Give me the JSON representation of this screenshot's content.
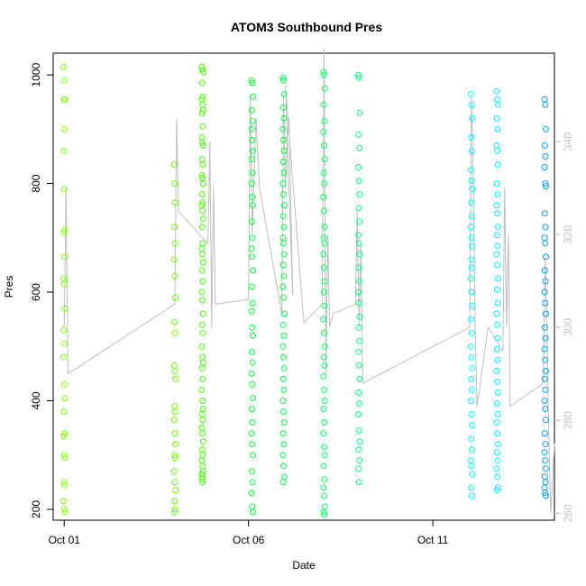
{
  "chart_data": {
    "type": "scatter",
    "title": "ATOM3 Southbound Pres",
    "xlabel": "Date",
    "ylabel": "Pres",
    "x_ticks": [
      "Oct 01",
      "Oct 06",
      "Oct 11"
    ],
    "y_ticks": [
      "200",
      "400",
      "600",
      "800",
      "1000"
    ],
    "y_right_ticks": [
      "260",
      "280",
      "300",
      "320",
      "340"
    ],
    "xlim_days": [
      30.7,
      44.3
    ],
    "ylim": [
      180,
      1040
    ],
    "y_right_lim": [
      258.5,
      359
    ],
    "grid": false,
    "legend": "none",
    "marker": "open-circle",
    "color_scale": [
      "#80ff00",
      "#00ff00",
      "#00ff80",
      "#00ffff",
      "#0080ff"
    ],
    "line_color": "#bebebe",
    "line_series": {
      "description_unit": "right-axis",
      "points": [
        [
          31.0,
          300
        ],
        [
          31.05,
          330
        ],
        [
          31.1,
          290
        ],
        [
          34.0,
          305
        ],
        [
          34.05,
          345
        ],
        [
          34.1,
          325
        ],
        [
          34.9,
          318
        ],
        [
          34.95,
          340
        ],
        [
          35.0,
          300
        ],
        [
          35.05,
          330
        ],
        [
          35.1,
          305
        ],
        [
          36.0,
          306
        ],
        [
          36.05,
          350
        ],
        [
          36.1,
          320
        ],
        [
          36.2,
          345
        ],
        [
          36.3,
          330
        ],
        [
          36.9,
          303
        ],
        [
          36.95,
          350
        ],
        [
          37.0,
          330
        ],
        [
          37.05,
          340
        ],
        [
          37.1,
          345
        ],
        [
          37.2,
          307
        ],
        [
          37.0,
          352
        ],
        [
          37.5,
          301
        ],
        [
          38.0,
          305
        ],
        [
          38.05,
          360
        ],
        [
          38.1,
          290
        ],
        [
          38.15,
          320
        ],
        [
          38.2,
          300
        ],
        [
          38.3,
          303
        ],
        [
          38.9,
          305
        ],
        [
          38.95,
          325
        ],
        [
          39.0,
          300
        ],
        [
          39.05,
          318
        ],
        [
          39.1,
          288
        ],
        [
          42.0,
          300
        ],
        [
          42.05,
          350
        ],
        [
          42.1,
          330
        ],
        [
          42.15,
          300
        ],
        [
          42.2,
          283
        ],
        [
          42.5,
          300
        ],
        [
          42.9,
          295
        ],
        [
          42.95,
          330
        ],
        [
          43.0,
          300
        ],
        [
          43.05,
          320
        ],
        [
          43.1,
          283
        ],
        [
          44.0,
          288
        ],
        [
          44.05,
          315
        ],
        [
          44.1,
          300
        ],
        [
          44.15,
          275
        ],
        [
          44.2,
          260
        ],
        [
          44.3,
          275
        ]
      ]
    },
    "series": [
      {
        "x_day": 31.0,
        "color": "#80ff00",
        "values": [
          1015,
          990,
          955,
          955,
          900,
          860,
          790,
          715,
          710,
          665,
          625,
          615,
          570,
          530,
          505,
          480,
          430,
          405,
          380,
          340,
          335,
          300,
          295,
          250,
          245,
          215,
          200,
          195
        ]
      },
      {
        "x_day": 34.0,
        "color": "#66ff00",
        "values": [
          835,
          800,
          765,
          720,
          690,
          660,
          630,
          590,
          545,
          525,
          465,
          455,
          440,
          390,
          380,
          365,
          340,
          320,
          300,
          295,
          270,
          250,
          235,
          215,
          200,
          195
        ]
      },
      {
        "x_day": 34.75,
        "color": "#40ff00",
        "values": [
          1015,
          1010,
          1005,
          985,
          960,
          955,
          945,
          935,
          930,
          905,
          885,
          875,
          870,
          845,
          835,
          815,
          810,
          800,
          780,
          765,
          760,
          750,
          735,
          720,
          690,
          680,
          670,
          655,
          640,
          620,
          600,
          585,
          560,
          540,
          525,
          500,
          480,
          470,
          460,
          440,
          420,
          400,
          385,
          375,
          365,
          350,
          340,
          325,
          310,
          300,
          290,
          280,
          270,
          265,
          260,
          255,
          250
        ]
      },
      {
        "x_day": 36.1,
        "color": "#00ff33",
        "values": [
          990,
          985,
          960,
          935,
          915,
          900,
          880,
          860,
          845,
          820,
          800,
          775,
          760,
          730,
          700,
          680,
          665,
          640,
          610,
          580,
          565,
          535,
          520,
          490,
          470,
          450,
          430,
          405,
          385,
          360,
          340,
          320,
          300,
          270,
          250,
          230,
          205,
          195
        ]
      },
      {
        "x_day": 36.95,
        "color": "#00ff40",
        "values": [
          995,
          990,
          965,
          940,
          920,
          900,
          880,
          860,
          840,
          820,
          800,
          780,
          760,
          740,
          720,
          700,
          690,
          670,
          650,
          630,
          610,
          590,
          560,
          540,
          520,
          500,
          480,
          460,
          440,
          420,
          400,
          380,
          360,
          340,
          320,
          300,
          280,
          260,
          250
        ]
      },
      {
        "x_day": 38.05,
        "color": "#00ff66",
        "values": [
          1005,
          1000,
          975,
          945,
          915,
          895,
          870,
          845,
          820,
          800,
          775,
          750,
          720,
          700,
          690,
          670,
          645,
          620,
          600,
          575,
          550,
          525,
          500,
          480,
          465,
          445,
          420,
          400,
          385,
          360,
          340,
          315,
          300,
          280,
          255,
          240,
          225,
          205,
          195,
          190
        ]
      },
      {
        "x_day": 39.0,
        "color": "#00ff80",
        "values": [
          1000,
          995,
          930,
          890,
          865,
          830,
          805,
          780,
          755,
          730,
          705,
          690,
          670,
          645,
          620,
          600,
          580,
          555,
          535,
          510,
          490,
          465,
          440,
          415,
          395,
          375,
          345,
          325,
          310,
          290,
          275,
          250
        ]
      },
      {
        "x_day": 42.05,
        "color": "#00ffff",
        "values": [
          965,
          945,
          920,
          885,
          860,
          825,
          805,
          790,
          765,
          740,
          720,
          700,
          685,
          660,
          645,
          625,
          600,
          575,
          550,
          525,
          500,
          480,
          460,
          440,
          420,
          400,
          375,
          355,
          330,
          310,
          290,
          280,
          265,
          240,
          225
        ]
      },
      {
        "x_day": 42.75,
        "color": "#00f0ff",
        "values": [
          970,
          955,
          945,
          920,
          900,
          870,
          860,
          835,
          800,
          780,
          760,
          745,
          720,
          705,
          685,
          670,
          650,
          625,
          605,
          580,
          560,
          540,
          515,
          495,
          475,
          455,
          435,
          415,
          395,
          375,
          360,
          340,
          320,
          305,
          290,
          275,
          260,
          240,
          235
        ]
      },
      {
        "x_day": 44.05,
        "color": "#00a0ff",
        "values": [
          955,
          945,
          900,
          870,
          850,
          830,
          800,
          795,
          745,
          720,
          700,
          690,
          665,
          640,
          620,
          600,
          580,
          560,
          535,
          515,
          495,
          475,
          455,
          440,
          420,
          400,
          385,
          365,
          340,
          320,
          305,
          290,
          275,
          260,
          250,
          240,
          230,
          225
        ]
      }
    ]
  }
}
